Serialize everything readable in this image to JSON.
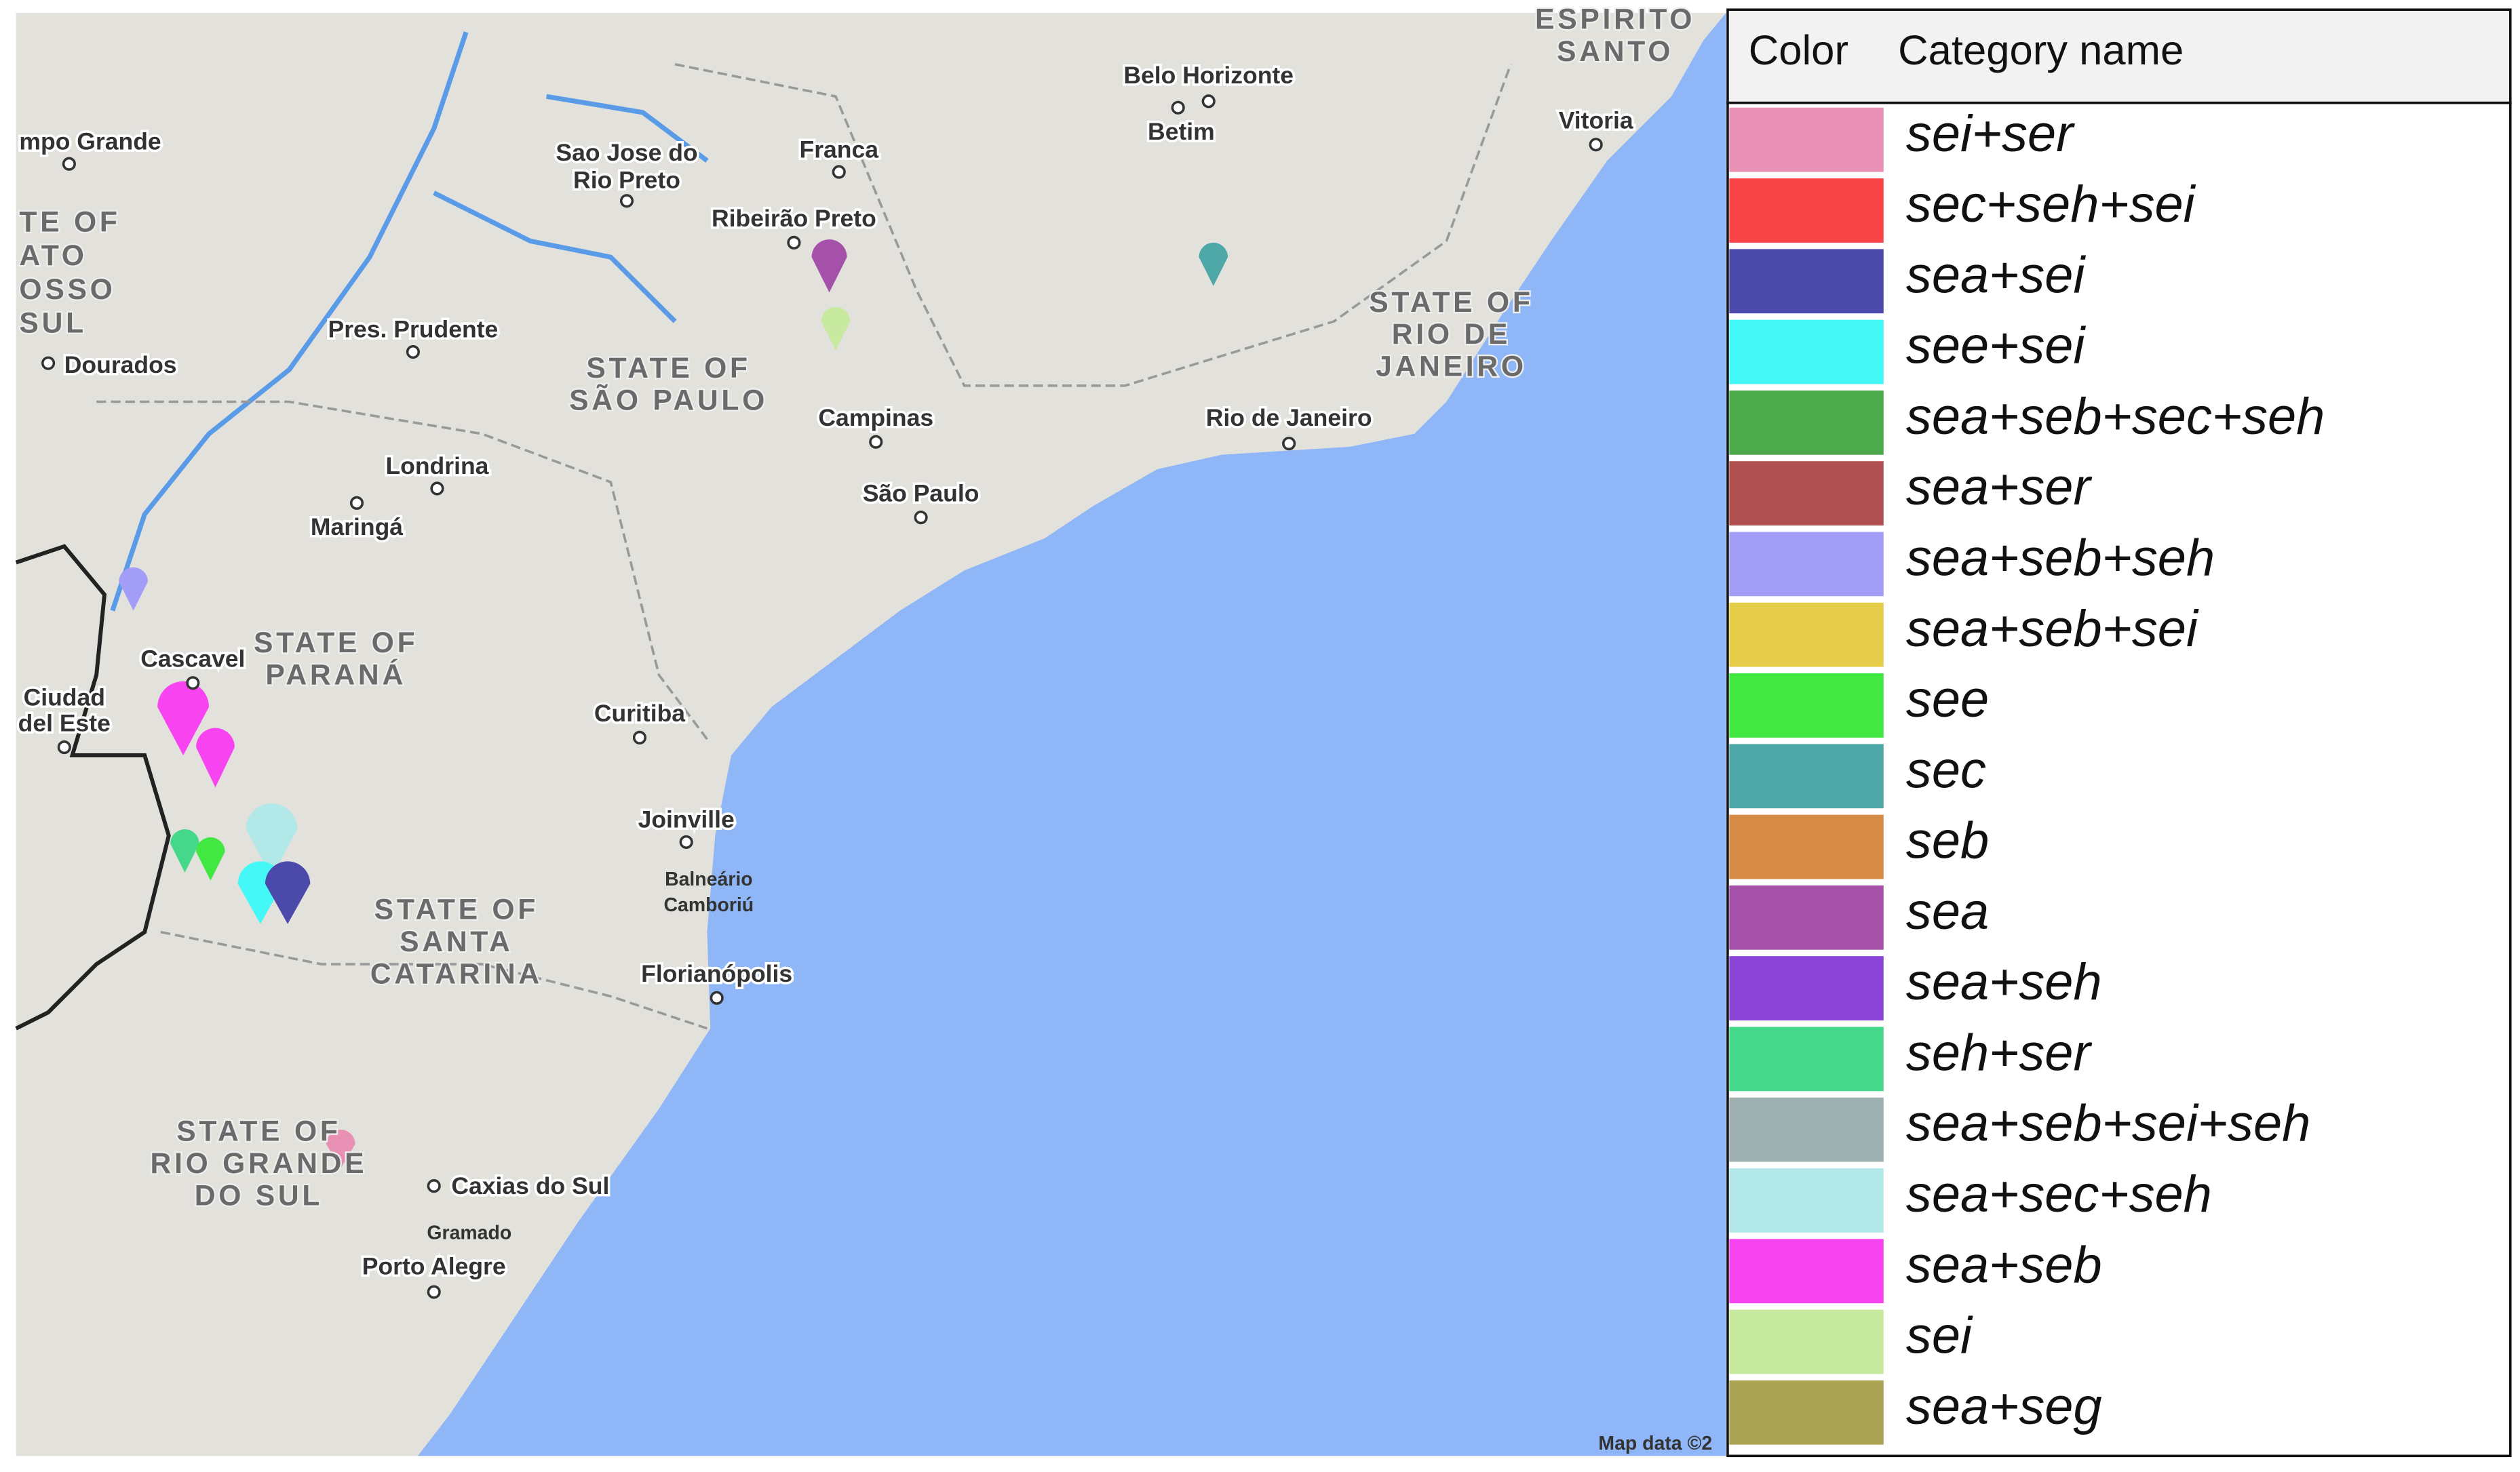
{
  "map": {
    "labels": [
      {
        "lines": [
          "mpo Grande"
        ]
      },
      {
        "lines": [
          "TE OF",
          "ATO",
          "OSSO",
          "SUL"
        ]
      },
      {
        "lines": [
          "Dourados"
        ]
      },
      {
        "lines": [
          "Sao Jose do",
          "Rio Preto"
        ]
      },
      {
        "lines": [
          "Franca"
        ]
      },
      {
        "lines": [
          "Belo Horizonte"
        ]
      },
      {
        "lines": [
          "Betim"
        ]
      },
      {
        "lines": [
          "ESPIRITO",
          "SANTO"
        ]
      },
      {
        "lines": [
          "Vitoria"
        ]
      },
      {
        "lines": [
          "Ribeirão Preto"
        ]
      },
      {
        "lines": [
          "Pres. Prudente"
        ]
      },
      {
        "lines": [
          "STATE OF",
          "SÃO PAULO"
        ]
      },
      {
        "lines": [
          "STATE OF",
          "RIO DE",
          "JANEIRO"
        ]
      },
      {
        "lines": [
          "Campinas"
        ]
      },
      {
        "lines": [
          "Rio de Janeiro"
        ]
      },
      {
        "lines": [
          "São Paulo"
        ]
      },
      {
        "lines": [
          "Londrina"
        ]
      },
      {
        "lines": [
          "Maringá"
        ]
      },
      {
        "lines": [
          "Cascavel"
        ]
      },
      {
        "lines": [
          "STATE OF",
          "PARANÁ"
        ]
      },
      {
        "lines": [
          "Ciudad",
          "del Este"
        ]
      },
      {
        "lines": [
          "Curitiba"
        ]
      },
      {
        "lines": [
          "Joinville"
        ]
      },
      {
        "lines": [
          "Balneário",
          "Camboriú"
        ]
      },
      {
        "lines": [
          "STATE OF",
          "SANTA",
          "CATARINA"
        ]
      },
      {
        "lines": [
          "Florianópolis"
        ]
      },
      {
        "lines": [
          "STATE OF",
          "RIO GRANDE",
          "DO SUL"
        ]
      },
      {
        "lines": [
          "Caxias do Sul"
        ]
      },
      {
        "lines": [
          "Gramado"
        ]
      },
      {
        "lines": [
          "Porto Alegre"
        ]
      },
      {
        "lines": [
          "Map data ©2"
        ]
      }
    ]
  },
  "legend": {
    "header": [
      "Color",
      "Category name"
    ],
    "rows": [
      {
        "name": "sei+ser",
        "color": "#e891b4"
      },
      {
        "name": "sec+seh+sei",
        "color": "#f94548"
      },
      {
        "name": "sea+sei",
        "color": "#4b4aab"
      },
      {
        "name": "see+sei",
        "color": "#45f8f8"
      },
      {
        "name": "sea+seb+sec+seh",
        "color": "#4caa4c"
      },
      {
        "name": "sea+ser",
        "color": "#b05050"
      },
      {
        "name": "sea+seb+seh",
        "color": "#a29ef7"
      },
      {
        "name": "sea+seb+sei",
        "color": "#e6cd4a"
      },
      {
        "name": "see",
        "color": "#42e842"
      },
      {
        "name": "sec",
        "color": "#4fa8a8"
      },
      {
        "name": "seb",
        "color": "#d68b47"
      },
      {
        "name": "sea",
        "color": "#a551a9"
      },
      {
        "name": "sea+seh",
        "color": "#8a45d8"
      },
      {
        "name": "seh+ser",
        "color": "#45d88a"
      },
      {
        "name": "sea+seb+sei+seh",
        "color": "#9fb0b0"
      },
      {
        "name": "sea+sec+seh",
        "color": "#b3e8e8"
      },
      {
        "name": "sea+seb",
        "color": "#f844f0"
      },
      {
        "name": "sei",
        "color": "#c8eaa0"
      },
      {
        "name": "sea+seg",
        "color": "#aaa454"
      }
    ]
  }
}
